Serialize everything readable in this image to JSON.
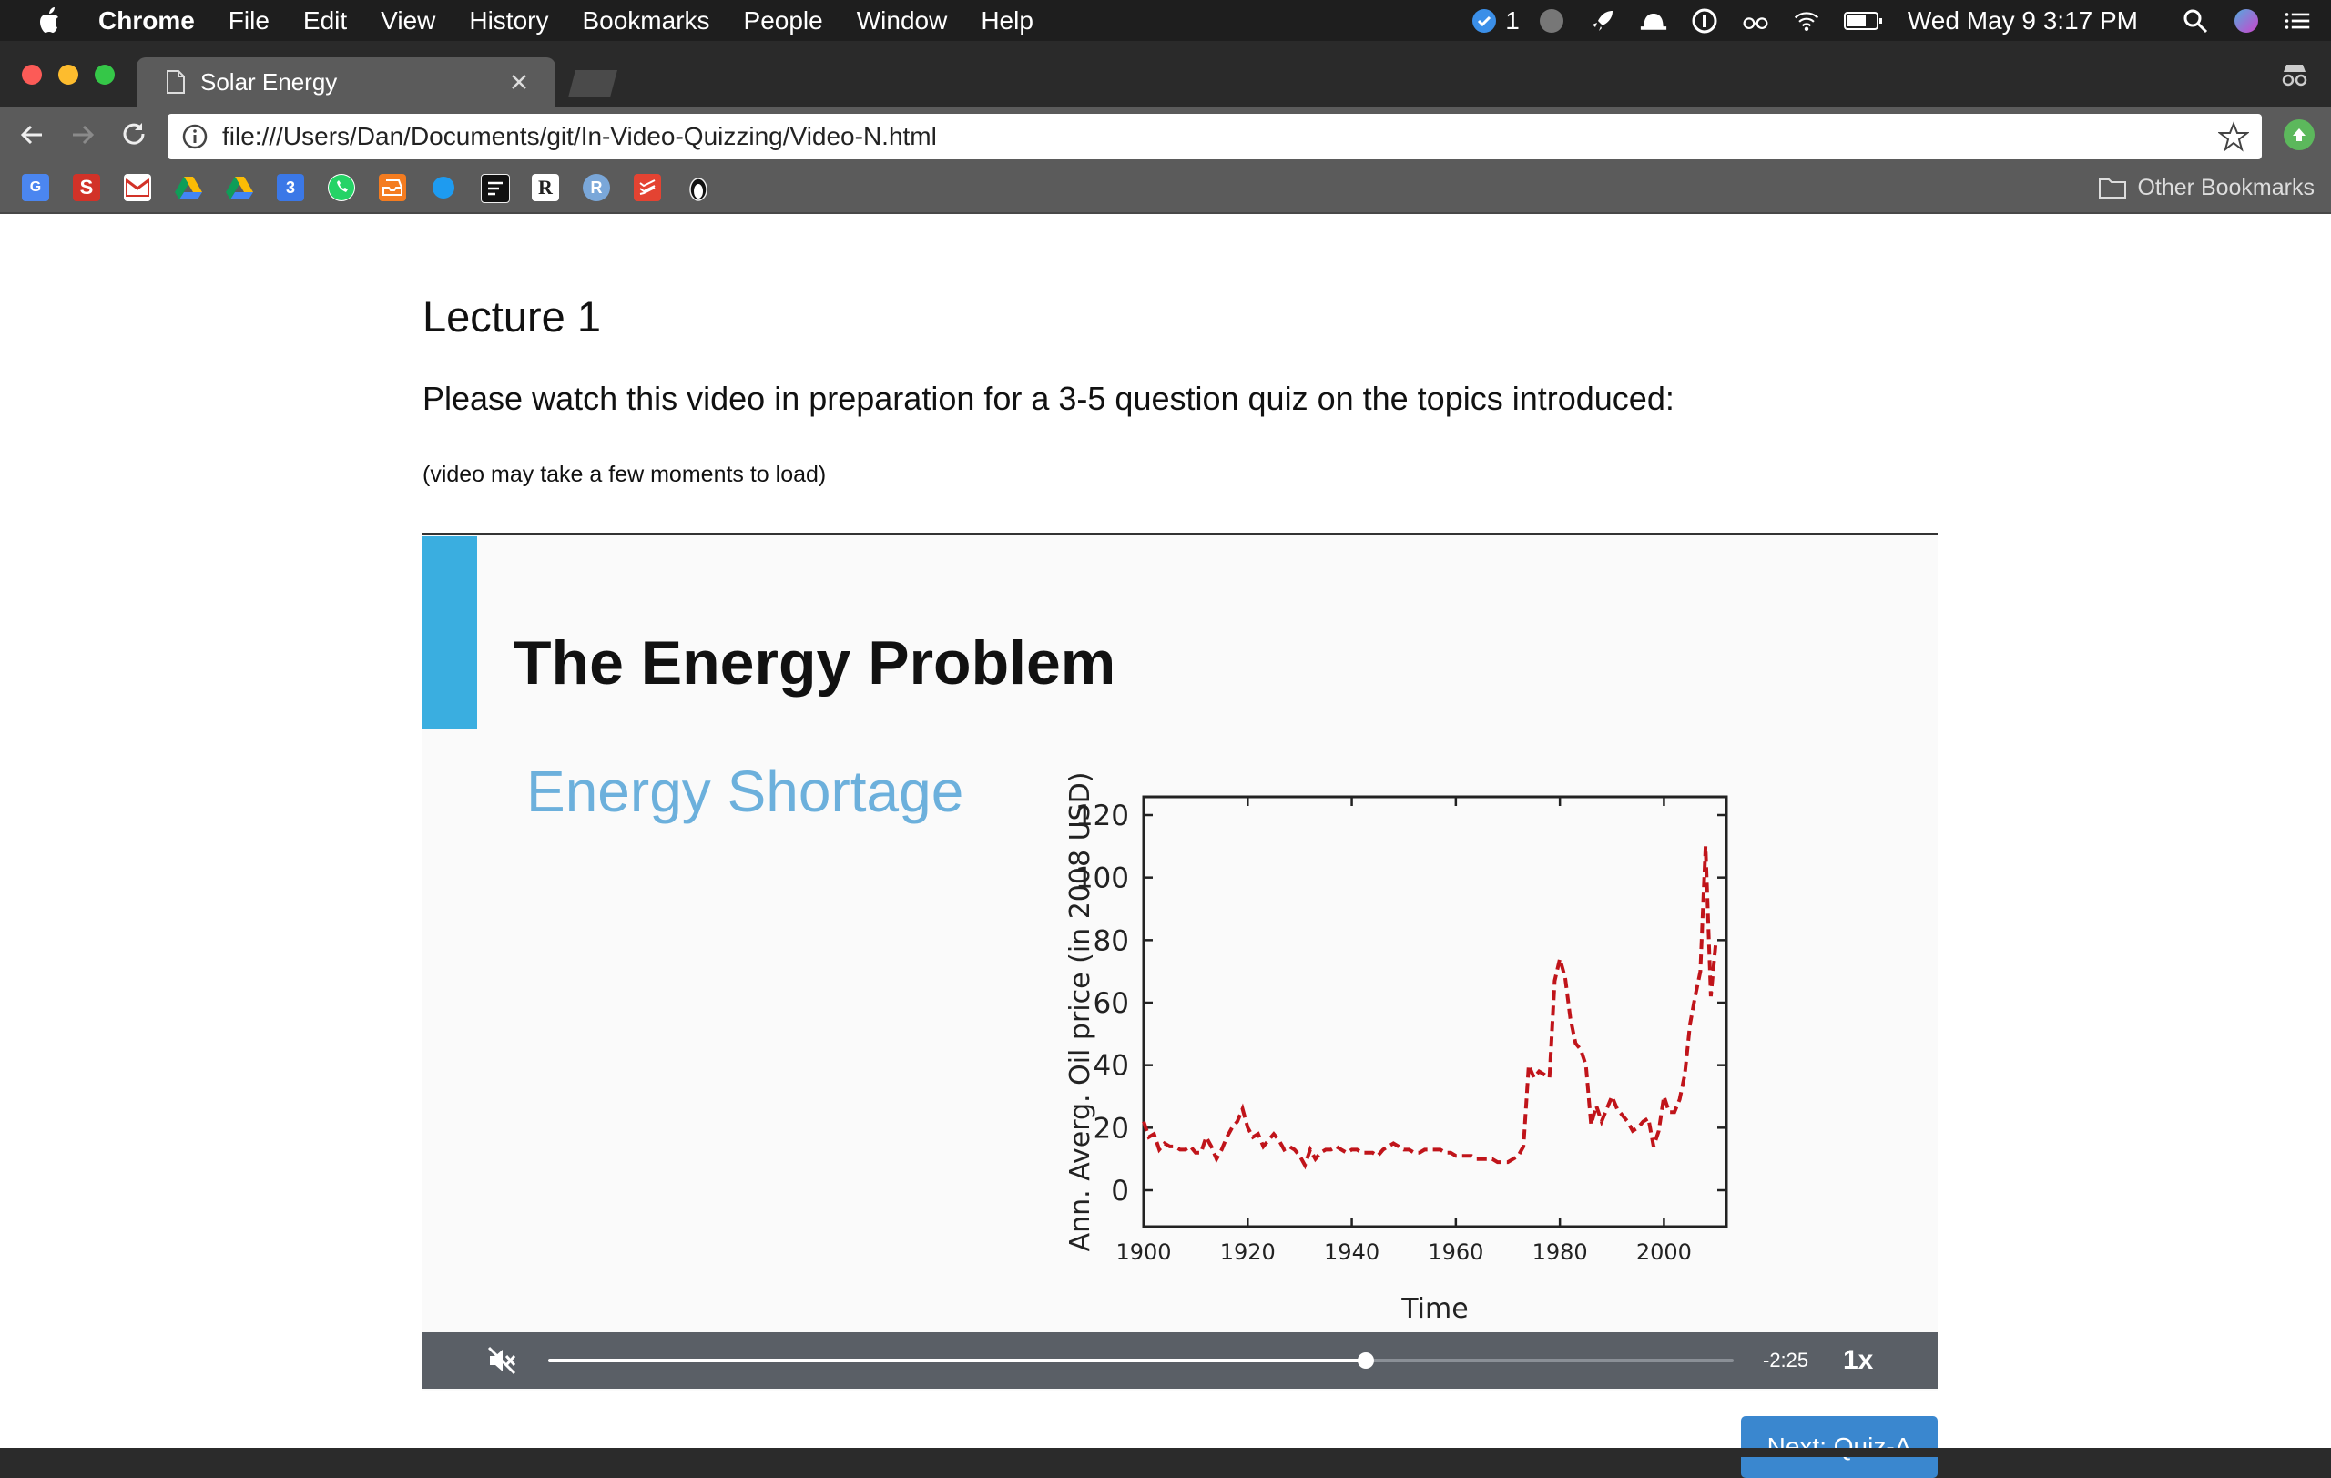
{
  "menubar": {
    "app": "Chrome",
    "items": [
      "File",
      "Edit",
      "View",
      "History",
      "Bookmarks",
      "People",
      "Window",
      "Help"
    ],
    "notification_count": "1",
    "clock": "Wed May 9  3:17 PM",
    "icons": [
      "apple-icon",
      "checkmark-shield-icon",
      "circle-icon",
      "rocket-icon",
      "hat-icon",
      "info-circle-icon",
      "glasses-icon",
      "wifi-icon",
      "battery-icon",
      "search-icon",
      "siri-icon",
      "list-icon"
    ]
  },
  "browser": {
    "tab_title": "Solar Energy",
    "url": "file:///Users/Dan/Documents/git/In-Video-Quizzing/Video-N.html",
    "other_bookmarks": "Other Bookmarks",
    "bookmark_icons": [
      "google-translate-icon",
      "s-icon",
      "gmail-icon",
      "drive-icon",
      "drive-icon",
      "calendar-icon",
      "whatsapp-icon",
      "inbox-icon",
      "blue-dot-icon",
      "notes-icon",
      "r-icon",
      "r-circle-icon",
      "todoist-icon",
      "penguin-icon"
    ],
    "calendar_day": "3",
    "colors": {
      "tabstrip": "#2a2a2a",
      "toolbar": "#5b5b5b"
    }
  },
  "page": {
    "heading": "Lecture 1",
    "instruction": "Please watch this video in preparation for a 3-5 question quiz on the topics introduced:",
    "note": "(video may take a few moments to load)",
    "next_button": "Next: Quiz-A"
  },
  "video": {
    "slide_title": "The Energy Problem",
    "slide_subtitle": "Energy Shortage",
    "time_remaining": "-2:25",
    "playback_rate": "1x",
    "progress": 0.69,
    "muted": true,
    "accent": "#3aaee0"
  },
  "chart_data": {
    "type": "line",
    "xlabel": "Time",
    "ylabel": "Ann. Averg. Oil price (in 2008 USD)",
    "xlim": [
      1900,
      2012
    ],
    "ylim": [
      0,
      120
    ],
    "xticks": [
      "1900",
      "1920",
      "1940",
      "1960",
      "1980",
      "2000"
    ],
    "yticks": [
      "0",
      "20",
      "40",
      "60",
      "80",
      "100",
      "120"
    ],
    "grid": false,
    "style": "dashed",
    "color": "#c0141a",
    "series": [
      {
        "x": [
          1900,
          1901,
          1902,
          1903,
          1904,
          1905,
          1906,
          1907,
          1908,
          1909,
          1910,
          1911,
          1912,
          1913,
          1914,
          1915,
          1916,
          1917,
          1918,
          1919,
          1920,
          1921,
          1922,
          1923,
          1924,
          1925,
          1926,
          1927,
          1928,
          1929,
          1930,
          1931,
          1932,
          1933,
          1934,
          1935,
          1936,
          1937,
          1938,
          1939,
          1940,
          1941,
          1942,
          1943,
          1944,
          1945,
          1946,
          1947,
          1948,
          1949,
          1950,
          1951,
          1952,
          1953,
          1954,
          1955,
          1956,
          1957,
          1958,
          1959,
          1960,
          1961,
          1962,
          1963,
          1964,
          1965,
          1966,
          1967,
          1968,
          1969,
          1970,
          1971,
          1972,
          1973,
          1974,
          1975,
          1976,
          1977,
          1978,
          1979,
          1980,
          1981,
          1982,
          1983,
          1984,
          1985,
          1986,
          1987,
          1988,
          1989,
          1990,
          1991,
          1992,
          1993,
          1994,
          1995,
          1996,
          1997,
          1998,
          1999,
          2000,
          2001,
          2002,
          2003,
          2004,
          2005,
          2006,
          2007,
          2008,
          2009,
          2010
        ],
        "values": [
          22,
          17,
          18,
          13,
          15,
          14,
          14,
          13,
          13,
          14,
          12,
          12,
          17,
          14,
          10,
          13,
          17,
          20,
          22,
          26,
          20,
          17,
          18,
          14,
          16,
          18,
          16,
          13,
          14,
          13,
          11,
          8,
          13,
          10,
          12,
          13,
          13,
          14,
          13,
          12,
          13,
          13,
          12,
          12,
          12,
          11,
          13,
          14,
          15,
          14,
          13,
          13,
          12,
          12,
          13,
          13,
          13,
          13,
          12,
          12,
          11,
          11,
          11,
          11,
          10,
          10,
          10,
          10,
          9,
          9,
          9,
          10,
          11,
          14,
          40,
          36,
          38,
          37,
          36,
          67,
          74,
          68,
          55,
          47,
          45,
          40,
          21,
          27,
          22,
          26,
          30,
          26,
          24,
          22,
          19,
          20,
          22,
          23,
          14,
          19,
          30,
          25,
          25,
          29,
          37,
          53,
          62,
          70,
          110,
          62,
          80
        ]
      }
    ]
  }
}
